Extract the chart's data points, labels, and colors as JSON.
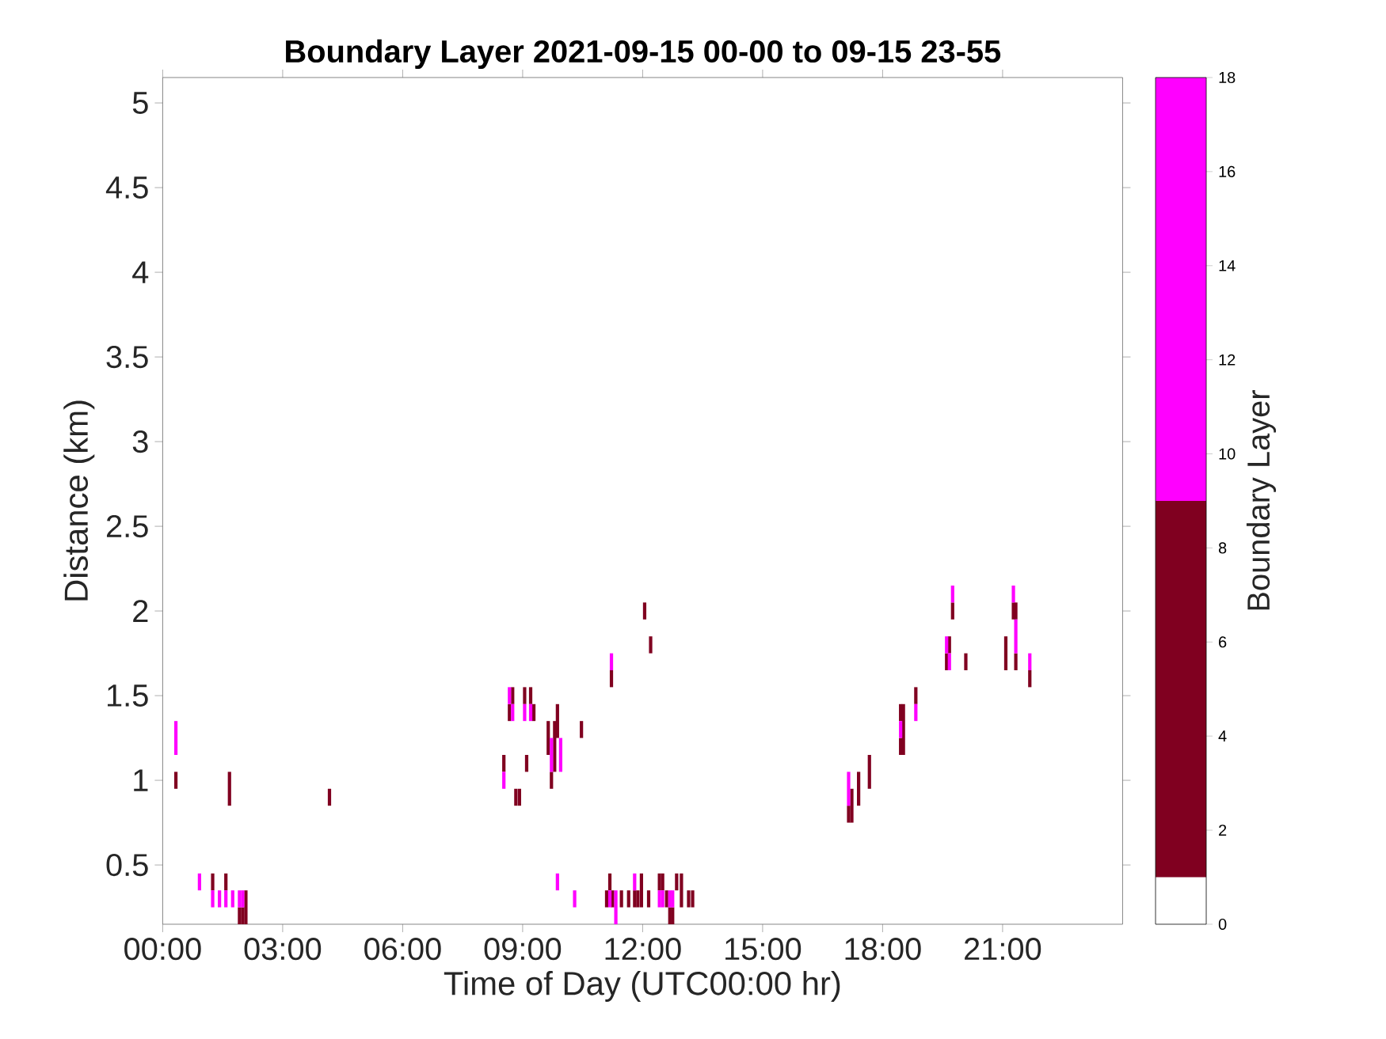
{
  "chart_data": {
    "type": "bar",
    "title": "Boundary Layer 2021-09-15 00-00 to 09-15 23-55",
    "xlabel": "Time of Day (UTC00:00 hr)",
    "ylabel": "Distance (km)",
    "clabel": "Boundary Layer",
    "grid": false,
    "xlim": [
      0,
      24
    ],
    "ylim": [
      0.15,
      5.15
    ],
    "xticks": [
      {
        "value": 0,
        "label": "00:00"
      },
      {
        "value": 3,
        "label": "03:00"
      },
      {
        "value": 6,
        "label": "06:00"
      },
      {
        "value": 9,
        "label": "09:00"
      },
      {
        "value": 12,
        "label": "12:00"
      },
      {
        "value": 15,
        "label": "15:00"
      },
      {
        "value": 18,
        "label": "18:00"
      },
      {
        "value": 21,
        "label": "21:00"
      }
    ],
    "yticks": [
      0.5,
      1,
      1.5,
      2,
      2.5,
      3,
      3.5,
      4,
      4.5,
      5
    ],
    "clim": [
      0,
      18
    ],
    "cticks": [
      0,
      2,
      4,
      6,
      8,
      10,
      12,
      14,
      16,
      18
    ],
    "series": [
      {
        "color": "#800020",
        "x": [
          0.33,
          1.25,
          1.58,
          1.67,
          1.92,
          2.0,
          2.08,
          4.17,
          8.53,
          8.67,
          8.75,
          8.83,
          8.92,
          9.05,
          9.1,
          9.2,
          9.28,
          9.64,
          9.72,
          9.8,
          9.87,
          10.47,
          11.1,
          11.18,
          11.22,
          11.25,
          11.47,
          11.65,
          11.8,
          11.88,
          11.97,
          12.05,
          12.15,
          12.2,
          12.42,
          12.5,
          12.6,
          12.68,
          12.75,
          12.85,
          12.97,
          13.15,
          13.25,
          17.15,
          17.23,
          17.4,
          17.67,
          18.45,
          18.52,
          18.83,
          19.6,
          19.67,
          19.75,
          20.08,
          21.08,
          21.27,
          21.33,
          21.68
        ],
        "base": [
          0.95,
          0.35,
          0.35,
          0.85,
          0.15,
          0.15,
          0.15,
          0.85,
          1.05,
          1.35,
          1.45,
          0.85,
          0.85,
          1.45,
          1.05,
          1.45,
          1.35,
          1.15,
          0.95,
          1.05,
          1.25,
          1.25,
          0.25,
          0.35,
          1.55,
          0.25,
          0.25,
          0.25,
          0.25,
          0.25,
          0.25,
          1.95,
          0.25,
          1.75,
          0.35,
          0.35,
          0.25,
          0.15,
          0.15,
          0.35,
          0.25,
          0.25,
          0.25,
          0.75,
          0.75,
          0.85,
          0.95,
          1.35,
          1.15,
          1.45,
          1.65,
          1.75,
          1.95,
          1.65,
          1.65,
          1.95,
          1.95,
          1.55
        ],
        "values": [
          0.1,
          0.1,
          0.1,
          0.2,
          0.1,
          0.1,
          0.2,
          0.1,
          0.1,
          0.1,
          0.1,
          0.1,
          0.1,
          0.1,
          0.1,
          0.1,
          0.1,
          0.2,
          0.1,
          0.3,
          0.2,
          0.1,
          0.1,
          0.1,
          0.1,
          0.1,
          0.1,
          0.1,
          0.1,
          0.1,
          0.2,
          0.1,
          0.1,
          0.1,
          0.1,
          0.1,
          0.1,
          0.1,
          0.1,
          0.1,
          0.2,
          0.1,
          0.1,
          0.1,
          0.2,
          0.2,
          0.2,
          0.1,
          0.3,
          0.1,
          0.1,
          0.1,
          0.1,
          0.1,
          0.2,
          0.1,
          0.1,
          0.1
        ]
      },
      {
        "color": "#800020",
        "x": [
          18.45,
          21.33
        ],
        "base": [
          1.15,
          1.65
        ],
        "values": [
          0.1,
          0.1
        ]
      },
      {
        "color": "#ff00ff",
        "x": [
          0.33,
          0.92,
          1.25,
          1.42,
          1.58,
          1.75,
          1.92,
          2.0,
          8.53,
          8.67,
          8.75,
          9.05,
          9.2,
          9.72,
          9.87,
          9.95,
          10.3,
          11.18,
          11.22,
          11.33,
          11.8,
          12.42,
          12.5,
          12.68,
          12.75,
          17.15,
          18.45,
          18.83,
          19.6,
          19.67,
          19.75,
          21.27,
          21.33,
          21.68
        ],
        "base": [
          1.15,
          0.35,
          0.25,
          0.25,
          0.25,
          0.25,
          0.25,
          0.25,
          0.95,
          1.45,
          1.35,
          1.35,
          1.35,
          1.05,
          0.35,
          1.05,
          0.25,
          0.25,
          1.65,
          0.15,
          0.35,
          0.25,
          0.25,
          0.25,
          0.25,
          0.85,
          1.25,
          1.35,
          1.75,
          1.65,
          2.05,
          2.05,
          1.75,
          1.65
        ],
        "values": [
          0.2,
          0.1,
          0.1,
          0.1,
          0.1,
          0.1,
          0.1,
          0.1,
          0.1,
          0.1,
          0.1,
          0.1,
          0.1,
          0.2,
          0.1,
          0.2,
          0.1,
          0.1,
          0.1,
          0.2,
          0.1,
          0.1,
          0.1,
          0.1,
          0.1,
          0.2,
          0.1,
          0.1,
          0.1,
          0.1,
          0.1,
          0.1,
          0.2,
          0.1
        ]
      }
    ]
  }
}
